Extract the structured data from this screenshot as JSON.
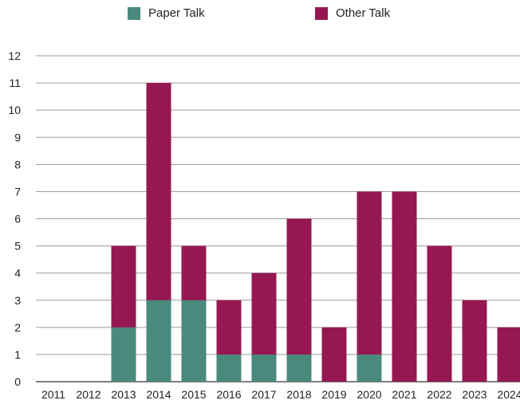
{
  "chart_data": {
    "type": "bar",
    "stacked": true,
    "categories": [
      "2011",
      "2012",
      "2013",
      "2014",
      "2015",
      "2016",
      "2017",
      "2018",
      "2019",
      "2020",
      "2021",
      "2022",
      "2023",
      "2024"
    ],
    "series": [
      {
        "name": "Paper Talk",
        "color": "#4a8a7c",
        "values": [
          0,
          0,
          2,
          3,
          3,
          1,
          1,
          1,
          0,
          1,
          0,
          0,
          0,
          0
        ]
      },
      {
        "name": "Other Talk",
        "color": "#951853",
        "values": [
          0,
          0,
          3,
          8,
          2,
          2,
          3,
          5,
          2,
          6,
          7,
          5,
          3,
          2
        ]
      }
    ],
    "yticks": [
      "0",
      "1",
      "2",
      "3",
      "4",
      "5",
      "6",
      "7",
      "8",
      "9",
      "10",
      "11",
      "12"
    ],
    "ylim": [
      0,
      12
    ],
    "grid": true,
    "legend_position": "top"
  }
}
